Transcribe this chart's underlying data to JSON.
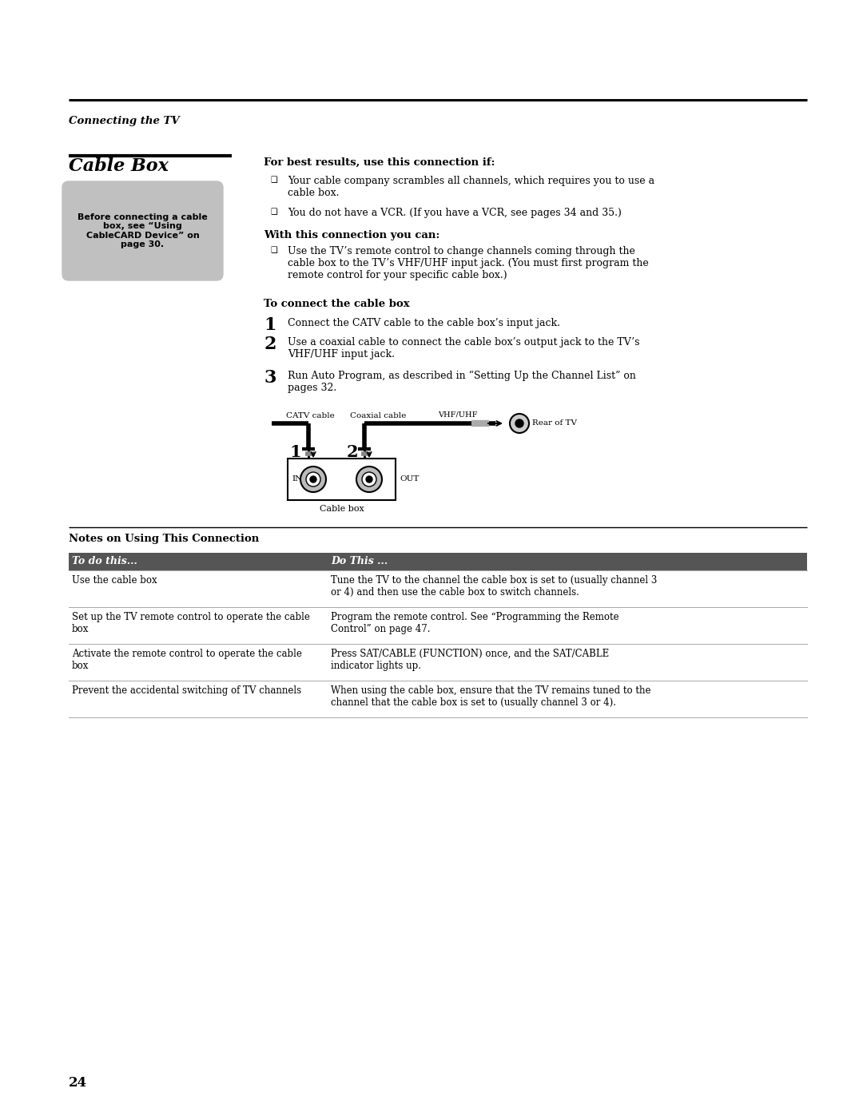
{
  "page_number": "24",
  "section_label": "Connecting the TV",
  "title": "Cable Box",
  "sidebar_text": "Before connecting a cable\nbox, see “Using\nCableCARD Device” on\npage 30.",
  "best_results_heading": "For best results, use this connection if:",
  "best_results_bullets": [
    "Your cable company scrambles all channels, which requires you to use a\ncable box.",
    "You do not have a VCR. (If you have a VCR, see pages 34 and 35.)"
  ],
  "with_connection_heading": "With this connection you can:",
  "with_connection_bullets": [
    "Use the TV’s remote control to change channels coming through the\ncable box to the TV’s VHF/UHF input jack. (You must first program the\nremote control for your specific cable box.)"
  ],
  "connect_heading": "To connect the cable box",
  "steps": [
    "Connect the CATV cable to the cable box’s input jack.",
    "Use a coaxial cable to connect the cable box’s output jack to the TV’s\nVHF/UHF input jack.",
    "Run Auto Program, as described in “Setting Up the Channel List” on\npages 32."
  ],
  "diagram_catv": "CATV cable",
  "diagram_coaxial": "Coaxial cable",
  "diagram_vhf": "VHF/UHF",
  "diagram_rear": "Rear of TV",
  "diagram_in": "IN",
  "diagram_out": "OUT",
  "diagram_cablebox": "Cable box",
  "notes_heading": "Notes on Using This Connection",
  "table_header": [
    "To do this...",
    "Do This ..."
  ],
  "table_header_bg": "#555555",
  "table_header_color": "#ffffff",
  "table_rows": [
    [
      "Use the cable box",
      "Tune the TV to the channel the cable box is set to (usually channel 3\nor 4) and then use the cable box to switch channels."
    ],
    [
      "Set up the TV remote control to operate the cable\nbox",
      "Program the remote control. See “Programming the Remote\nControl” on page 47."
    ],
    [
      "Activate the remote control to operate the cable\nbox",
      "Press SAT/CABLE (FUNCTION) once, and the SAT/CABLE\nindicator lights up."
    ],
    [
      "Prevent the accidental switching of TV channels",
      "When using the cable box, ensure that the TV remains tuned to the\nchannel that the cable box is set to (usually channel 3 or 4)."
    ]
  ],
  "bg": "#ffffff"
}
